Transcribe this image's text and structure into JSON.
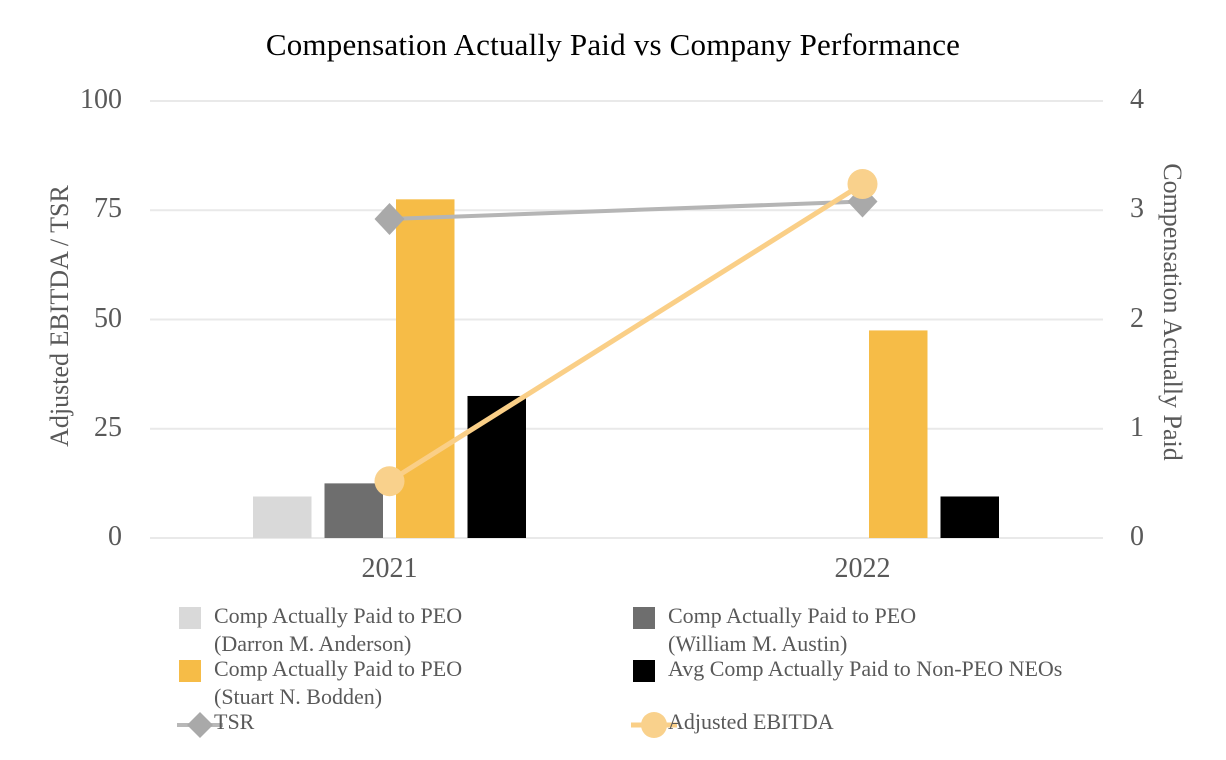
{
  "chart_data": {
    "type": "combo-bar-line",
    "title": "Compensation Actually Paid vs Company Performance",
    "categories": [
      "2021",
      "2022"
    ],
    "left_axis": {
      "label": "Adjusted EBITDA / TSR",
      "ticks": [
        0,
        25,
        50,
        75,
        100
      ],
      "range": [
        0,
        100
      ]
    },
    "right_axis": {
      "label": "Compensation Actually Paid",
      "ticks": [
        0,
        1,
        2,
        3,
        4
      ],
      "range": [
        0,
        4
      ]
    },
    "grid": "horizontal",
    "gridline_color": "#E9E9E9",
    "text_color": "#595959",
    "bar_series": [
      {
        "key": "peo-anderson",
        "name": "Comp Actually Paid to PEO (Darron M. Anderson)",
        "axis": "right",
        "color": "#D9D9D9",
        "values": [
          0.38,
          null
        ]
      },
      {
        "key": "peo-austin",
        "name": "Comp Actually Paid to PEO (William M. Austin)",
        "axis": "right",
        "color": "#6E6E6E",
        "values": [
          0.5,
          null
        ]
      },
      {
        "key": "peo-bodden",
        "name": "Comp Actually Paid to PEO (Stuart N. Bodden)",
        "axis": "right",
        "color": "#F6BC47",
        "values": [
          3.1,
          1.9
        ]
      },
      {
        "key": "non-peo-neos",
        "name": "Avg Comp Actually Paid to Non-PEO NEOs",
        "axis": "right",
        "color": "#000000",
        "values": [
          1.3,
          0.38
        ]
      }
    ],
    "line_series": [
      {
        "key": "tsr",
        "name": "TSR",
        "axis": "left",
        "line_color": "#B5B5B5",
        "marker": "diamond",
        "marker_color": "#A9A9A9",
        "values": [
          73,
          77
        ]
      },
      {
        "key": "adjusted-ebitda",
        "name": "Adjusted EBITDA",
        "axis": "left",
        "line_color": "#FACF87",
        "marker": "circle",
        "marker_color": "#F9D18C",
        "values": [
          13,
          81
        ]
      }
    ],
    "legend": {
      "columns": [
        {
          "items": [
            {
              "type": "swatch",
              "key": "peo-anderson",
              "color": "#D9D9D9",
              "lines": [
                "Comp Actually Paid to PEO",
                "(Darron M. Anderson)"
              ]
            },
            {
              "type": "swatch",
              "key": "peo-bodden",
              "color": "#F6BC47",
              "lines": [
                "Comp Actually Paid to PEO",
                "(Stuart N. Bodden)"
              ]
            },
            {
              "type": "marker-diamond",
              "key": "tsr",
              "line_color": "#B8B8B8",
              "marker_color": "#A9A9A9",
              "lines": [
                "TSR"
              ]
            }
          ]
        },
        {
          "items": [
            {
              "type": "swatch",
              "key": "peo-austin",
              "color": "#6E6E6E",
              "lines": [
                "Comp Actually Paid to PEO",
                "(William M. Austin)"
              ]
            },
            {
              "type": "swatch",
              "key": "non-peo-neos",
              "color": "#000000",
              "lines": [
                "Avg Comp Actually Paid to Non-PEO NEOs"
              ]
            },
            {
              "type": "marker-circle",
              "key": "adjusted-ebitda",
              "line_color": "#FACF87",
              "marker_color": "#F9D18C",
              "lines": [
                "Adjusted EBITDA"
              ]
            }
          ]
        }
      ]
    }
  }
}
